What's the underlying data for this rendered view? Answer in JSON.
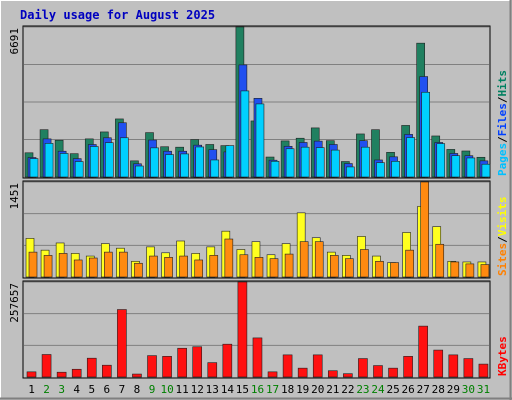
{
  "chart_data": {
    "type": "bar",
    "title": "Daily usage for August 2025",
    "categories": [
      "1",
      "2",
      "3",
      "4",
      "5",
      "6",
      "7",
      "8",
      "9",
      "10",
      "11",
      "12",
      "13",
      "14",
      "15",
      "16",
      "17",
      "18",
      "19",
      "20",
      "21",
      "22",
      "23",
      "24",
      "25",
      "26",
      "27",
      "28",
      "29",
      "30",
      "31"
    ],
    "weekend_days": [
      2,
      3,
      9,
      10,
      16,
      17,
      23,
      24,
      30,
      31
    ],
    "panels": [
      {
        "id": "hits",
        "ymax_label": "6691",
        "ymax": 6691,
        "legend": [
          "Pages",
          "/",
          "Files",
          "/",
          "Hits"
        ],
        "legend_colors": [
          "#00c0ff",
          "#000000",
          "#0040ff",
          "#000000",
          "#008060"
        ],
        "series": [
          {
            "name": "Hits",
            "color": "#208060",
            "values": [
              1080,
              2110,
              1640,
              1040,
              1700,
              2010,
              2590,
              720,
              1980,
              1350,
              1330,
              1670,
              1450,
              1400,
              6691,
              2500,
              890,
              1610,
              1730,
              2190,
              1620,
              690,
              1920,
              2110,
              1100,
              2300,
              5970,
              1830,
              1230,
              1160,
              880
            ]
          },
          {
            "name": "Files",
            "color": "#2050f0",
            "values": [
              870,
              1700,
              1150,
              820,
              1450,
              1750,
              2420,
              590,
              1650,
              1150,
              1150,
              1420,
              1220,
              1120,
              5000,
              3510,
              750,
              1370,
              1540,
              1600,
              1450,
              600,
              1620,
              760,
              900,
              1900,
              4480,
              1540,
              1050,
              950,
              720
            ]
          },
          {
            "name": "Pages",
            "color": "#00d0ff",
            "values": [
              820,
              1500,
              1050,
              690,
              1360,
              1530,
              1750,
              490,
              1300,
              1000,
              1030,
              1340,
              760,
              1400,
              3840,
              3260,
              700,
              1260,
              1330,
              1310,
              1200,
              450,
              1330,
              640,
              700,
              1760,
              3780,
              1490,
              950,
              850,
              570
            ]
          }
        ]
      },
      {
        "id": "visits",
        "ymax_label": "1451",
        "ymax": 1451,
        "legend": [
          "Sites",
          "/",
          "Visits"
        ],
        "legend_colors": [
          "#ff8000",
          "#000000",
          "#ffff00"
        ],
        "series": [
          {
            "name": "Visits",
            "color": "#ffff20",
            "values": [
              590,
              410,
              520,
              360,
              320,
              510,
              440,
              240,
              460,
              370,
              550,
              360,
              460,
              700,
              420,
              540,
              340,
              510,
              980,
              600,
              380,
              330,
              620,
              320,
              220,
              680,
              1080,
              770,
              240,
              230,
              230
            ]
          },
          {
            "name": "Sites",
            "color": "#ff8a10",
            "values": [
              380,
              330,
              360,
              260,
              290,
              380,
              380,
              210,
              320,
              300,
              320,
              260,
              330,
              580,
              340,
              300,
              280,
              350,
              540,
              540,
              330,
              280,
              420,
              240,
              220,
              410,
              1451,
              500,
              230,
              200,
              190
            ]
          }
        ]
      },
      {
        "id": "kbytes",
        "ymax_label": "257657",
        "ymax": 257657,
        "legend": [
          "KBytes"
        ],
        "legend_colors": [
          "#ff0000"
        ],
        "series": [
          {
            "name": "KBytes",
            "color": "#ff1010",
            "values": [
              14000,
              61000,
              13000,
              21000,
              51000,
              32000,
              183000,
              8000,
              58000,
              56000,
              78000,
              82000,
              39000,
              89000,
              257657,
              106000,
              14000,
              60000,
              24000,
              60000,
              17000,
              9000,
              50000,
              31000,
              24000,
              56000,
              138000,
              73000,
              60000,
              50000,
              35000
            ]
          }
        ]
      }
    ]
  }
}
